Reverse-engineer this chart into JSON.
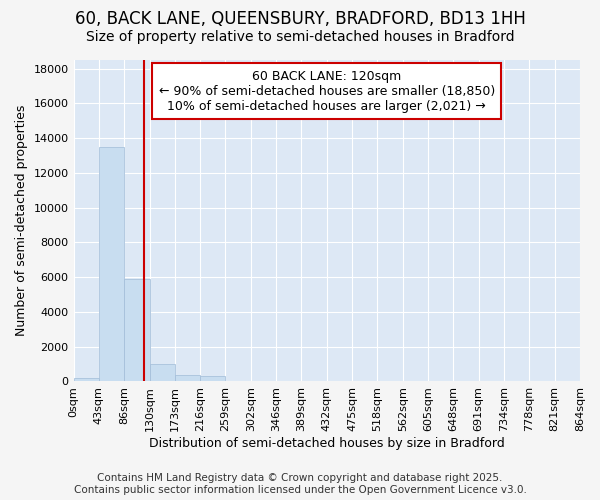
{
  "title": "60, BACK LANE, QUEENSBURY, BRADFORD, BD13 1HH",
  "subtitle": "Size of property relative to semi-detached houses in Bradford",
  "xlabel": "Distribution of semi-detached houses by size in Bradford",
  "ylabel": "Number of semi-detached properties",
  "bin_labels": [
    "0sqm",
    "43sqm",
    "86sqm",
    "130sqm",
    "173sqm",
    "216sqm",
    "259sqm",
    "302sqm",
    "346sqm",
    "389sqm",
    "432sqm",
    "475sqm",
    "518sqm",
    "562sqm",
    "605sqm",
    "648sqm",
    "691sqm",
    "734sqm",
    "778sqm",
    "821sqm",
    "864sqm"
  ],
  "bar_values": [
    200,
    13500,
    5900,
    1000,
    350,
    300,
    0,
    0,
    0,
    0,
    0,
    0,
    0,
    0,
    0,
    0,
    0,
    0,
    0,
    0
  ],
  "bar_color": "#c8ddf0",
  "bar_edge_color": "#a0bcd8",
  "ylim": [
    0,
    18500
  ],
  "yticks": [
    0,
    2000,
    4000,
    6000,
    8000,
    10000,
    12000,
    14000,
    16000,
    18000
  ],
  "red_line_x": 2.79,
  "red_line_color": "#cc0000",
  "annotation_text_line1": "60 BACK LANE: 120sqm",
  "annotation_text_line2": "← 90% of semi-detached houses are smaller (18,850)",
  "annotation_text_line3": "10% of semi-detached houses are larger (2,021) →",
  "annotation_box_color": "#ffffff",
  "annotation_box_edge": "#cc0000",
  "footer_line1": "Contains HM Land Registry data © Crown copyright and database right 2025.",
  "footer_line2": "Contains public sector information licensed under the Open Government Licence v3.0.",
  "bg_color": "#f5f5f5",
  "plot_bg_color": "#dde8f5",
  "grid_color": "#ffffff",
  "title_fontsize": 12,
  "subtitle_fontsize": 10,
  "axis_label_fontsize": 9,
  "tick_fontsize": 8,
  "footer_fontsize": 7.5,
  "annotation_fontsize": 9
}
